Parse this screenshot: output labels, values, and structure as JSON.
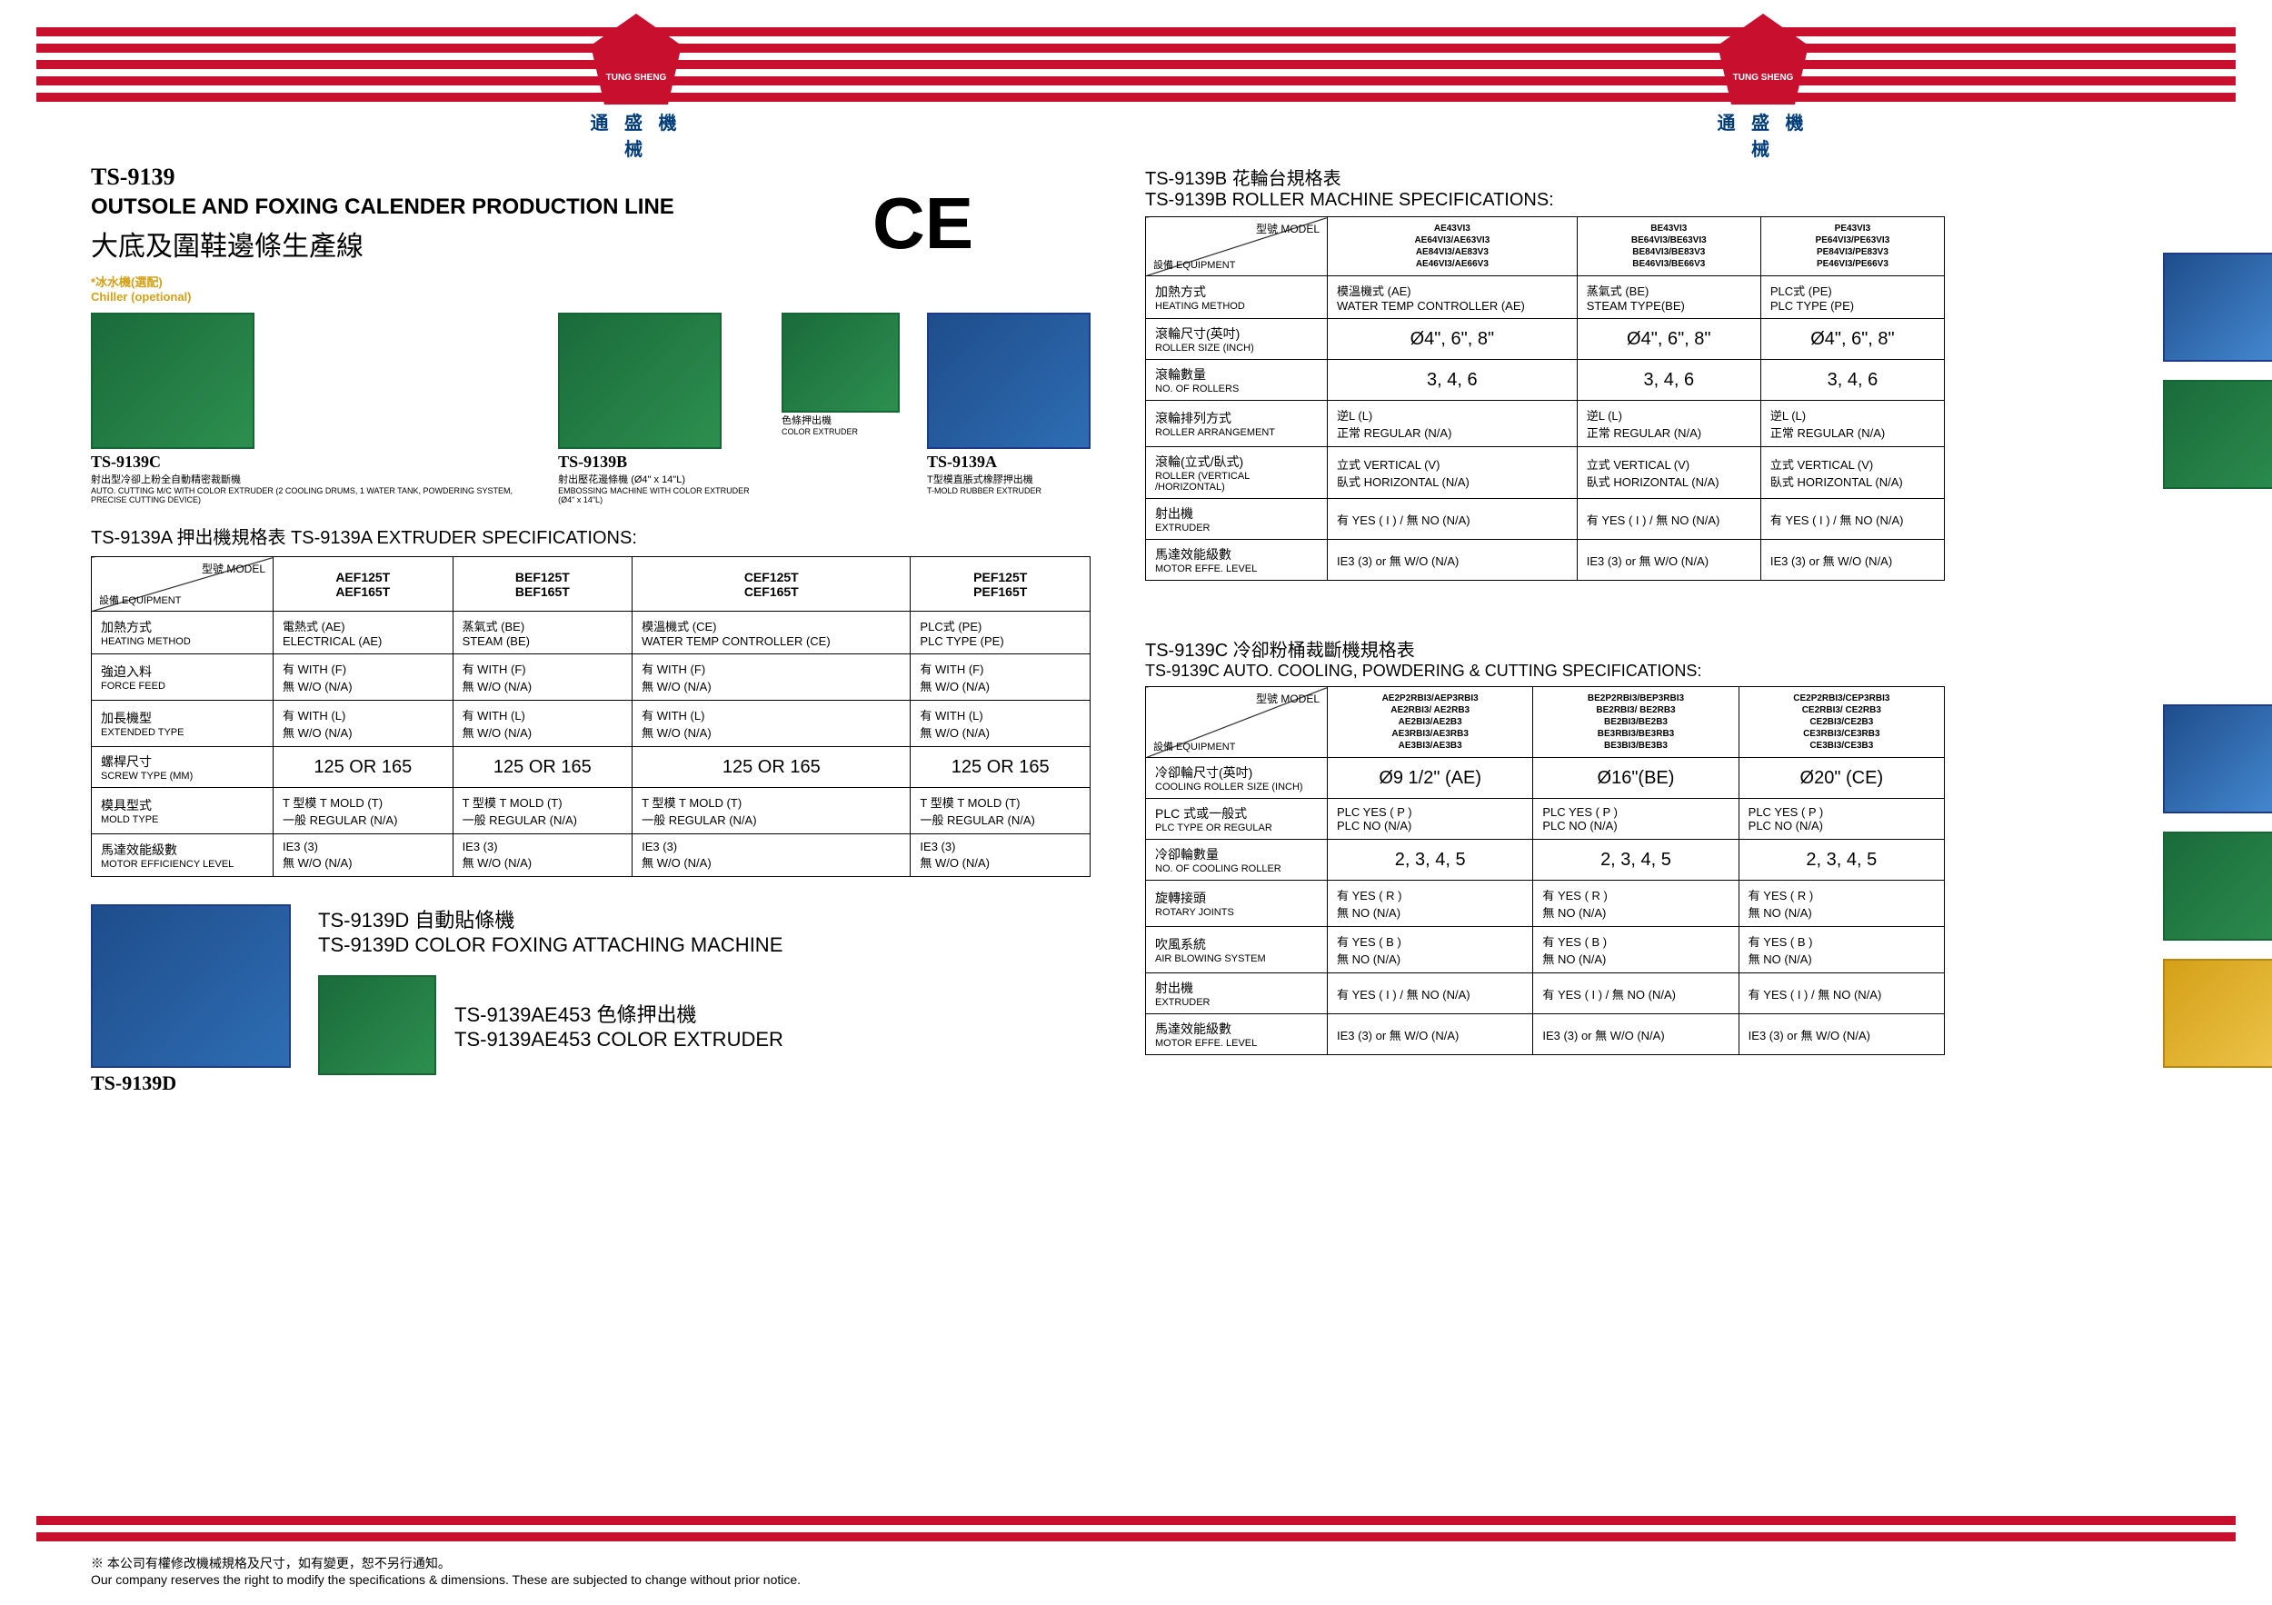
{
  "logo": {
    "en": "TUNG SHENG",
    "cn": "通 盛 機 械"
  },
  "header": {
    "model": "TS-9139",
    "title_en": "OUTSOLE AND FOXING CALENDER PRODUCTION LINE",
    "title_cn": "大底及圍鞋邊條生產線",
    "ce": "CE",
    "chiller_cn": "*冰水機(選配)",
    "chiller_en": "Chiller (opetional)"
  },
  "machines": [
    {
      "label": "TS-9139C",
      "desc_cn": "射出型冷卻上粉全自動精密裁斷機",
      "desc_en": "AUTO. CUTTING M/C WITH COLOR EXTRUDER (2 COOLING DRUMS, 1 WATER TANK, POWDERING SYSTEM, PRECISE CUTTING DEVICE)"
    },
    {
      "label": "TS-9139B",
      "desc_cn": "射出壓花邊條機 (Ø4\" x 14\"L)",
      "desc_en": "EMBOSSING MACHINE WITH COLOR EXTRUDER (Ø4\" x 14\"L)"
    },
    {
      "label": "",
      "desc_cn": "色條押出機",
      "desc_en": "COLOR EXTRUDER"
    },
    {
      "label": "TS-9139A",
      "desc_cn": "T型模直脹式橡膠押出機",
      "desc_en": "T-MOLD RUBBER EXTRUDER"
    }
  ],
  "tableA": {
    "title": "TS-9139A 押出機規格表   TS-9139A EXTRUDER SPECIFICATIONS:",
    "diag_top": "型號 MODEL",
    "diag_bot": "設備 EQUIPMENT",
    "cols": [
      "AEF125T\nAEF165T",
      "BEF125T\nBEF165T",
      "CEF125T\nCEF165T",
      "PEF125T\nPEF165T"
    ],
    "rows": [
      {
        "cn": "加熱方式",
        "en": "HEATING METHOD",
        "cells": [
          "電熱式 (AE)\nELECTRICAL (AE)",
          "蒸氣式 (BE)\nSTEAM (BE)",
          "模溫機式 (CE)\nWATER TEMP CONTROLLER (CE)",
          "PLC式 (PE)\nPLC TYPE (PE)"
        ]
      },
      {
        "cn": "強迫入料",
        "en": "FORCE FEED",
        "cells": [
          "有 WITH (F)\n無 W/O (N/A)",
          "有 WITH (F)\n無 W/O (N/A)",
          "有 WITH (F)\n無 W/O (N/A)",
          "有 WITH (F)\n無 W/O (N/A)"
        ]
      },
      {
        "cn": "加長機型",
        "en": "EXTENDED TYPE",
        "cells": [
          "有 WITH (L)\n無 W/O (N/A)",
          "有 WITH (L)\n無 W/O (N/A)",
          "有 WITH (L)\n無 W/O (N/A)",
          "有 WITH (L)\n無 W/O (N/A)"
        ]
      },
      {
        "cn": "螺桿尺寸",
        "en": "SCREW TYPE (MM)",
        "cells": [
          "125 OR 165",
          "125 OR 165",
          "125 OR 165",
          "125 OR 165"
        ]
      },
      {
        "cn": "模具型式",
        "en": "MOLD TYPE",
        "cells": [
          "T 型模 T MOLD (T)\n一般 REGULAR (N/A)",
          "T 型模 T MOLD (T)\n一般 REGULAR (N/A)",
          "T 型模 T MOLD (T)\n一般 REGULAR (N/A)",
          "T 型模 T MOLD (T)\n一般 REGULAR (N/A)"
        ]
      },
      {
        "cn": "馬達效能級數",
        "en": "MOTOR EFFICIENCY LEVEL",
        "cells": [
          "IE3 (3)\n無 W/O (N/A)",
          "IE3 (3)\n無 W/O (N/A)",
          "IE3 (3)\n無 W/O (N/A)",
          "IE3 (3)\n無 W/O (N/A)"
        ]
      }
    ]
  },
  "sectionD": {
    "label": "TS-9139D",
    "title_cn": "TS-9139D 自動貼條機",
    "title_en": "TS-9139D COLOR FOXING ATTACHING MACHINE",
    "extruder_cn": "TS-9139AE453 色條押出機",
    "extruder_en": "TS-9139AE453 COLOR EXTRUDER"
  },
  "tableB": {
    "title_cn": "TS-9139B 花輪台規格表",
    "title_en": "TS-9139B ROLLER MACHINE SPECIFICATIONS:",
    "diag_top": "型號 MODEL",
    "diag_bot": "設備 EQUIPMENT",
    "cols": [
      "AE43VI3\nAE64VI3/AE63VI3\nAE84VI3/AE83V3\nAE46VI3/AE66V3",
      "BE43VI3\nBE64VI3/BE63VI3\nBE84VI3/BE83V3\nBE46VI3/BE66V3",
      "PE43VI3\nPE64VI3/PE63VI3\nPE84VI3/PE83V3\nPE46VI3/PE66V3"
    ],
    "rows": [
      {
        "cn": "加熱方式",
        "en": "HEATING METHOD",
        "cells": [
          "模溫機式 (AE)\nWATER TEMP CONTROLLER (AE)",
          "蒸氣式 (BE)\nSTEAM TYPE(BE)",
          "PLC式 (PE)\nPLC TYPE (PE)"
        ]
      },
      {
        "cn": "滾輪尺寸(英吋)",
        "en": "ROLLER SIZE (INCH)",
        "cells": [
          "Ø4\", 6\", 8\"",
          "Ø4\", 6\", 8\"",
          "Ø4\", 6\", 8\""
        ]
      },
      {
        "cn": "滾輪數量",
        "en": "NO. OF ROLLERS",
        "cells": [
          "3, 4, 6",
          "3, 4, 6",
          "3, 4, 6"
        ]
      },
      {
        "cn": "滾輪排列方式",
        "en": "ROLLER ARRANGEMENT",
        "cells": [
          "逆L  (L)\n正常 REGULAR (N/A)",
          "逆L  (L)\n正常 REGULAR (N/A)",
          "逆L  (L)\n正常 REGULAR (N/A)"
        ]
      },
      {
        "cn": "滾輪(立式/臥式)",
        "en": "ROLLER (VERTICAL /HORIZONTAL)",
        "cells": [
          "立式 VERTICAL (V)\n臥式 HORIZONTAL (N/A)",
          "立式 VERTICAL (V)\n臥式 HORIZONTAL (N/A)",
          "立式 VERTICAL (V)\n臥式 HORIZONTAL (N/A)"
        ]
      },
      {
        "cn": "射出機",
        "en": "EXTRUDER",
        "cells": [
          "有 YES ( I ) / 無  NO (N/A)",
          "有 YES ( I ) / 無  NO (N/A)",
          "有 YES ( I ) / 無  NO (N/A)"
        ]
      },
      {
        "cn": "馬達效能級數",
        "en": "MOTOR  EFFE. LEVEL",
        "cells": [
          "IE3 (3) or 無 W/O (N/A)",
          "IE3 (3) or 無 W/O (N/A)",
          "IE3 (3) or 無 W/O (N/A)"
        ]
      }
    ]
  },
  "tableC": {
    "title_cn": "TS-9139C 冷卻粉桶裁斷機規格表",
    "title_en": "TS-9139C AUTO. COOLING, POWDERING & CUTTING SPECIFICATIONS:",
    "diag_top": "型號 MODEL",
    "diag_bot": "設備 EQUIPMENT",
    "cols": [
      "AE2P2RBI3/AEP3RBI3\nAE2RBI3/ AE2RB3\nAE2BI3/AE2B3\nAE3RBI3/AE3RB3\nAE3BI3/AE3B3",
      "BE2P2RBI3/BEP3RBI3\nBE2RBI3/ BE2RB3\nBE2BI3/BE2B3\nBE3RBI3/BE3RB3\nBE3BI3/BE3B3",
      "CE2P2RBI3/CEP3RBI3\nCE2RBI3/ CE2RB3\nCE2BI3/CE2B3\nCE3RBI3/CE3RB3\nCE3BI3/CE3B3"
    ],
    "rows": [
      {
        "cn": "冷卻輪尺寸(英吋)",
        "en": "COOLING ROLLER SIZE (INCH)",
        "cells": [
          "Ø9 1/2\" (AE)",
          "Ø16\"(BE)",
          "Ø20\" (CE)"
        ]
      },
      {
        "cn": "PLC 式或一般式",
        "en": "PLC TYPE OR REGULAR",
        "cells": [
          "PLC YES ( P )\nPLC NO (N/A)",
          "PLC YES ( P )\nPLC NO (N/A)",
          "PLC YES ( P )\nPLC NO (N/A)"
        ]
      },
      {
        "cn": "冷卻輪數量",
        "en": "NO. OF COOLING ROLLER",
        "cells": [
          "2, 3, 4, 5",
          "2, 3, 4, 5",
          "2, 3, 4, 5"
        ]
      },
      {
        "cn": "旋轉接頭",
        "en": "ROTARY JOINTS",
        "cells": [
          "有 YES ( R )\n無  NO (N/A)",
          "有 YES ( R )\n無  NO (N/A)",
          "有 YES ( R )\n無  NO (N/A)"
        ]
      },
      {
        "cn": "吹風系統",
        "en": "AIR BLOWING SYSTEM",
        "cells": [
          "有 YES ( B )\n無  NO (N/A)",
          "有 YES ( B )\n無  NO (N/A)",
          "有 YES ( B )\n無  NO (N/A)"
        ]
      },
      {
        "cn": "射出機",
        "en": "EXTRUDER",
        "cells": [
          "有 YES ( I ) / 無  NO (N/A)",
          "有 YES ( I ) / 無  NO (N/A)",
          "有 YES ( I ) / 無  NO (N/A)"
        ]
      },
      {
        "cn": "馬達效能級數",
        "en": "MOTOR  EFFE. LEVEL",
        "cells": [
          "IE3 (3) or 無 W/O (N/A)",
          "IE3 (3) or 無 W/O (N/A)",
          "IE3 (3) or 無 W/O (N/A)"
        ]
      }
    ]
  },
  "footer": {
    "cn": "本公司有權修改機械規格及尺寸，如有變更，恕不另行通知。",
    "en": "Our company reserves the right to modify the specifications & dimensions. These are subjected to change without prior notice."
  },
  "colors": {
    "brand_red": "#c8102e",
    "brand_blue": "#003d7a",
    "machine_green": "#1a6b3a",
    "machine_blue": "#1e4d8b",
    "chiller_yellow": "#d4a017"
  }
}
